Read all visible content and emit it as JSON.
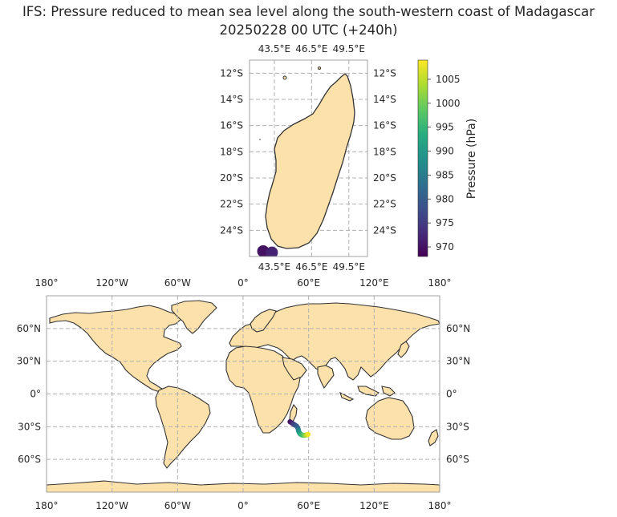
{
  "title": {
    "line1": "IFS: Pressure reduced to mean sea level along the south-western coast of Madagascar",
    "line2": "20250228 00 UTC (+240h)"
  },
  "colors": {
    "land": "#fde1ab",
    "coast": "#333333",
    "grid": "#b0b0b0",
    "frame": "#a0a0a0"
  },
  "inset_map": {
    "lon_range": [
      41.5,
      51.0
    ],
    "lat_range": [
      -26.0,
      -11.0
    ],
    "lon_ticks": [
      {
        "v": 43.5,
        "label": "43.5°E"
      },
      {
        "v": 46.5,
        "label": "46.5°E"
      },
      {
        "v": 49.5,
        "label": "49.5°E"
      }
    ],
    "lat_ticks": [
      {
        "v": -12,
        "label": "12°S"
      },
      {
        "v": -14,
        "label": "14°S"
      },
      {
        "v": -16,
        "label": "16°S"
      },
      {
        "v": -18,
        "label": "18°S"
      },
      {
        "v": -20,
        "label": "20°S"
      },
      {
        "v": -22,
        "label": "22°S"
      },
      {
        "v": -24,
        "label": "24°S"
      }
    ],
    "points": [
      {
        "lon": 42.6,
        "lat": -25.6,
        "p": 970
      },
      {
        "lon": 43.3,
        "lat": -25.7,
        "p": 972
      }
    ]
  },
  "world_map": {
    "lon_range": [
      -180,
      180
    ],
    "lat_range": [
      -90,
      90
    ],
    "lon_ticks": [
      {
        "v": -180,
        "label": "180°"
      },
      {
        "v": -120,
        "label": "120°W"
      },
      {
        "v": -60,
        "label": "60°W"
      },
      {
        "v": 0,
        "label": "0°"
      },
      {
        "v": 60,
        "label": "60°E"
      },
      {
        "v": 120,
        "label": "120°E"
      },
      {
        "v": 180,
        "label": "180°"
      }
    ],
    "lat_ticks": [
      {
        "v": 60,
        "label": "60°N"
      },
      {
        "v": 30,
        "label": "30°N"
      },
      {
        "v": 0,
        "label": "0°"
      },
      {
        "v": -30,
        "label": "30°S"
      },
      {
        "v": -60,
        "label": "60°S"
      }
    ],
    "track": [
      {
        "lon": 43.0,
        "lat": -25.5,
        "p": 970
      },
      {
        "lon": 44.5,
        "lat": -26.5,
        "p": 972
      },
      {
        "lon": 46.0,
        "lat": -27.5,
        "p": 975
      },
      {
        "lon": 47.5,
        "lat": -28.5,
        "p": 977
      },
      {
        "lon": 49.0,
        "lat": -29.5,
        "p": 979
      },
      {
        "lon": 50.0,
        "lat": -31.0,
        "p": 981
      },
      {
        "lon": 50.5,
        "lat": -32.5,
        "p": 984
      },
      {
        "lon": 50.8,
        "lat": -34.0,
        "p": 987
      },
      {
        "lon": 51.5,
        "lat": -35.5,
        "p": 990
      },
      {
        "lon": 52.5,
        "lat": -36.8,
        "p": 993
      },
      {
        "lon": 54.0,
        "lat": -37.6,
        "p": 996
      },
      {
        "lon": 55.5,
        "lat": -37.9,
        "p": 999
      },
      {
        "lon": 57.0,
        "lat": -37.8,
        "p": 1002
      },
      {
        "lon": 58.5,
        "lat": -37.4,
        "p": 1005
      },
      {
        "lon": 59.5,
        "lat": -37.0,
        "p": 1008
      }
    ]
  },
  "colorbar": {
    "label": "Pressure (hPa)",
    "range": [
      968,
      1009
    ],
    "ticks": [
      {
        "v": 970,
        "label": "970"
      },
      {
        "v": 975,
        "label": "975"
      },
      {
        "v": 980,
        "label": "980"
      },
      {
        "v": 985,
        "label": "985"
      },
      {
        "v": 990,
        "label": "990"
      },
      {
        "v": 995,
        "label": "995"
      },
      {
        "v": 1000,
        "label": "1000"
      },
      {
        "v": 1005,
        "label": "1005"
      }
    ],
    "colormap": "viridis"
  }
}
